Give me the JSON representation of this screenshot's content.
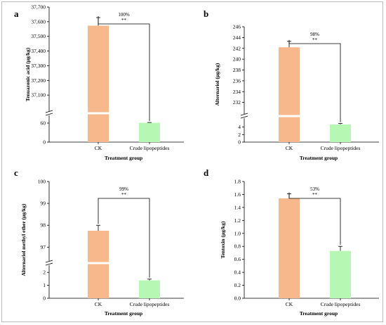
{
  "colors": {
    "ck": "#f7b98b",
    "crude": "#b6f7b4"
  },
  "chart_data": [
    {
      "panel": "a",
      "type": "bar",
      "categories": [
        "CK",
        "Crude lipopeptides"
      ],
      "values": [
        37573,
        61
      ],
      "errors": [
        55,
        1
      ],
      "xlabel": "Treatment group",
      "ylabel": "Tenuazonic acid (μg/kg)",
      "yticks_lower": [
        "0",
        "60"
      ],
      "yticks_upper": [
        "37,100",
        "37,200",
        "37,300",
        "37,400",
        "37,500",
        "37,600",
        "37,700"
      ],
      "ylim_lower": [
        0,
        80
      ],
      "ylim_upper": [
        37000,
        37700
      ],
      "axis_break": true,
      "annotation": {
        "percent": "100%",
        "stars": "**"
      }
    },
    {
      "panel": "b",
      "type": "bar",
      "categories": [
        "CK",
        "Crude lipopeptides"
      ],
      "values": [
        242.2,
        4.7
      ],
      "errors": [
        1.1,
        0.25
      ],
      "xlabel": "Treatment group",
      "ylabel": "Alternariol (μg/kg)",
      "yticks_lower": [
        "0",
        "2",
        "4"
      ],
      "yticks_upper": [
        "232",
        "234",
        "236",
        "238",
        "240",
        "242",
        "244",
        "246"
      ],
      "ylim_lower": [
        0,
        6
      ],
      "ylim_upper": [
        230,
        246
      ],
      "axis_break": true,
      "annotation": {
        "percent": "98%",
        "stars": "**"
      }
    },
    {
      "panel": "c",
      "type": "bar",
      "categories": [
        "CK",
        "Crude lipopeptides"
      ],
      "values": [
        97.75,
        1.38
      ],
      "errors": [
        0.25,
        0.1
      ],
      "xlabel": "Treatment group",
      "ylabel": "Alternariol methyl ether (μg/kg)",
      "yticks_lower": [
        "0",
        "1",
        "2"
      ],
      "yticks_upper": [
        "97",
        "98",
        "99",
        "100"
      ],
      "ylim_lower": [
        0,
        2.5
      ],
      "ylim_upper": [
        96.4,
        100
      ],
      "axis_break": true,
      "annotation": {
        "percent": "99%",
        "stars": "**"
      }
    },
    {
      "panel": "d",
      "type": "bar",
      "categories": [
        "CK",
        "Crude lipopeptides"
      ],
      "values": [
        1.54,
        0.73
      ],
      "errors": [
        0.07,
        0.07
      ],
      "xlabel": "Treatment group",
      "ylabel": "Tentoxin (μg/kg)",
      "yticks": [
        "0.0",
        "0.2",
        "0.4",
        "0.6",
        "0.8",
        "1.0",
        "1.2",
        "1.4",
        "1.6",
        "1.8"
      ],
      "ylim": [
        0,
        1.8
      ],
      "axis_break": false,
      "annotation": {
        "percent": "53%",
        "stars": "**"
      }
    }
  ]
}
